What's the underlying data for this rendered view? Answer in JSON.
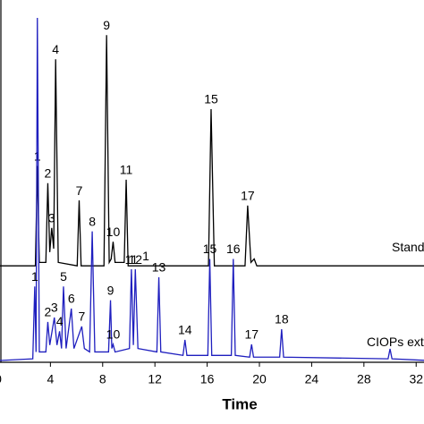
{
  "chart_data": {
    "type": "line",
    "x_label": "Time",
    "xlim": [
      0.14,
      32.6
    ],
    "xticks": [
      0,
      4,
      8,
      12,
      16,
      20,
      24,
      28,
      32
    ],
    "ylim": [
      0,
      100
    ],
    "series": [
      {
        "name": "Standard",
        "color": "#000000",
        "x": [
          0,
          2.85,
          3.0,
          3.15,
          3.65,
          3.8,
          3.95,
          4.1,
          4.25,
          4.4,
          4.6,
          6.05,
          6.2,
          6.35,
          8.1,
          8.3,
          8.5,
          8.65,
          8.8,
          8.95,
          9.65,
          9.8,
          9.95,
          16.1,
          16.3,
          16.55,
          18.9,
          19.1,
          19.35,
          19.6,
          19.8,
          33
        ],
        "values": [
          28,
          28,
          57,
          29,
          29,
          52,
          32,
          39,
          33,
          88,
          29,
          28,
          47,
          28,
          28,
          95,
          29,
          30,
          35,
          29,
          29,
          53,
          28,
          28,
          73.5,
          28,
          28,
          45.5,
          29,
          30,
          28,
          28
        ],
        "annotations": [
          {
            "text": "1",
            "x": 3.0,
            "y": 57
          },
          {
            "text": "2",
            "x": 3.8,
            "y": 52
          },
          {
            "text": "3",
            "x": 4.1,
            "y": 39
          },
          {
            "text": "4",
            "x": 4.4,
            "y": 88
          },
          {
            "text": "7",
            "x": 6.2,
            "y": 47
          },
          {
            "text": "9",
            "x": 8.3,
            "y": 95
          },
          {
            "text": "10",
            "x": 8.8,
            "y": 35
          },
          {
            "text": "11",
            "x": 9.8,
            "y": 53
          },
          {
            "text": "1",
            "x": 11.3,
            "y": 28
          },
          {
            "text": "15",
            "x": 16.3,
            "y": 73.5
          },
          {
            "text": "17",
            "x": 19.1,
            "y": 45.5
          }
        ]
      },
      {
        "name": "CIOPs extract",
        "color": "#1f1fbf",
        "x": [
          0,
          2.65,
          2.8,
          2.9,
          3.0,
          3.15,
          3.65,
          3.8,
          3.95,
          4.3,
          4.5,
          4.7,
          4.85,
          5.0,
          5.2,
          5.6,
          5.8,
          6.4,
          6.6,
          7.0,
          7.2,
          7.4,
          8.45,
          8.6,
          8.7,
          8.8,
          8.95,
          10.05,
          10.2,
          10.35,
          10.5,
          10.7,
          12.15,
          12.3,
          12.45,
          14.15,
          14.3,
          14.45,
          16.05,
          16.2,
          16.35,
          17.85,
          18.0,
          18.15,
          19.25,
          19.4,
          19.55,
          21.55,
          21.7,
          21.85,
          29.85,
          30.0,
          30.15,
          33
        ],
        "values": [
          0.5,
          1,
          22,
          3,
          100,
          3,
          3,
          11.7,
          5,
          13,
          5,
          9,
          4,
          22,
          4,
          15.6,
          4,
          10.4,
          4,
          3,
          38,
          3,
          3,
          18,
          4,
          5.2,
          3,
          4,
          27,
          5,
          27,
          4,
          3,
          24.7,
          3,
          2,
          6.5,
          2,
          2,
          30,
          2,
          2,
          30,
          2,
          1.5,
          5.2,
          1.5,
          1.5,
          9.6,
          1.5,
          1,
          3.9,
          1,
          0.5
        ],
        "annotations": [
          {
            "text": "1",
            "x": 2.8,
            "y": 22
          },
          {
            "text": "2",
            "x": 3.8,
            "y": 11.7
          },
          {
            "text": "3",
            "x": 4.3,
            "y": 13
          },
          {
            "text": "4",
            "x": 4.7,
            "y": 9
          },
          {
            "text": "5",
            "x": 5.0,
            "y": 22
          },
          {
            "text": "6",
            "x": 5.6,
            "y": 15.6
          },
          {
            "text": "7",
            "x": 6.4,
            "y": 10.4
          },
          {
            "text": "8",
            "x": 7.2,
            "y": 38
          },
          {
            "text": "9",
            "x": 8.6,
            "y": 18
          },
          {
            "text": "10",
            "x": 8.8,
            "y": 5.2
          },
          {
            "text": "11",
            "x": 10.2,
            "y": 27
          },
          {
            "text": "12",
            "x": 10.5,
            "y": 27
          },
          {
            "text": "13",
            "x": 12.3,
            "y": 24.7
          },
          {
            "text": "14",
            "x": 14.3,
            "y": 6.5
          },
          {
            "text": "15",
            "x": 16.2,
            "y": 30
          },
          {
            "text": "16",
            "x": 18.0,
            "y": 30
          },
          {
            "text": "17",
            "x": 19.4,
            "y": 5.2
          },
          {
            "text": "18",
            "x": 21.7,
            "y": 9.6
          }
        ]
      }
    ]
  }
}
